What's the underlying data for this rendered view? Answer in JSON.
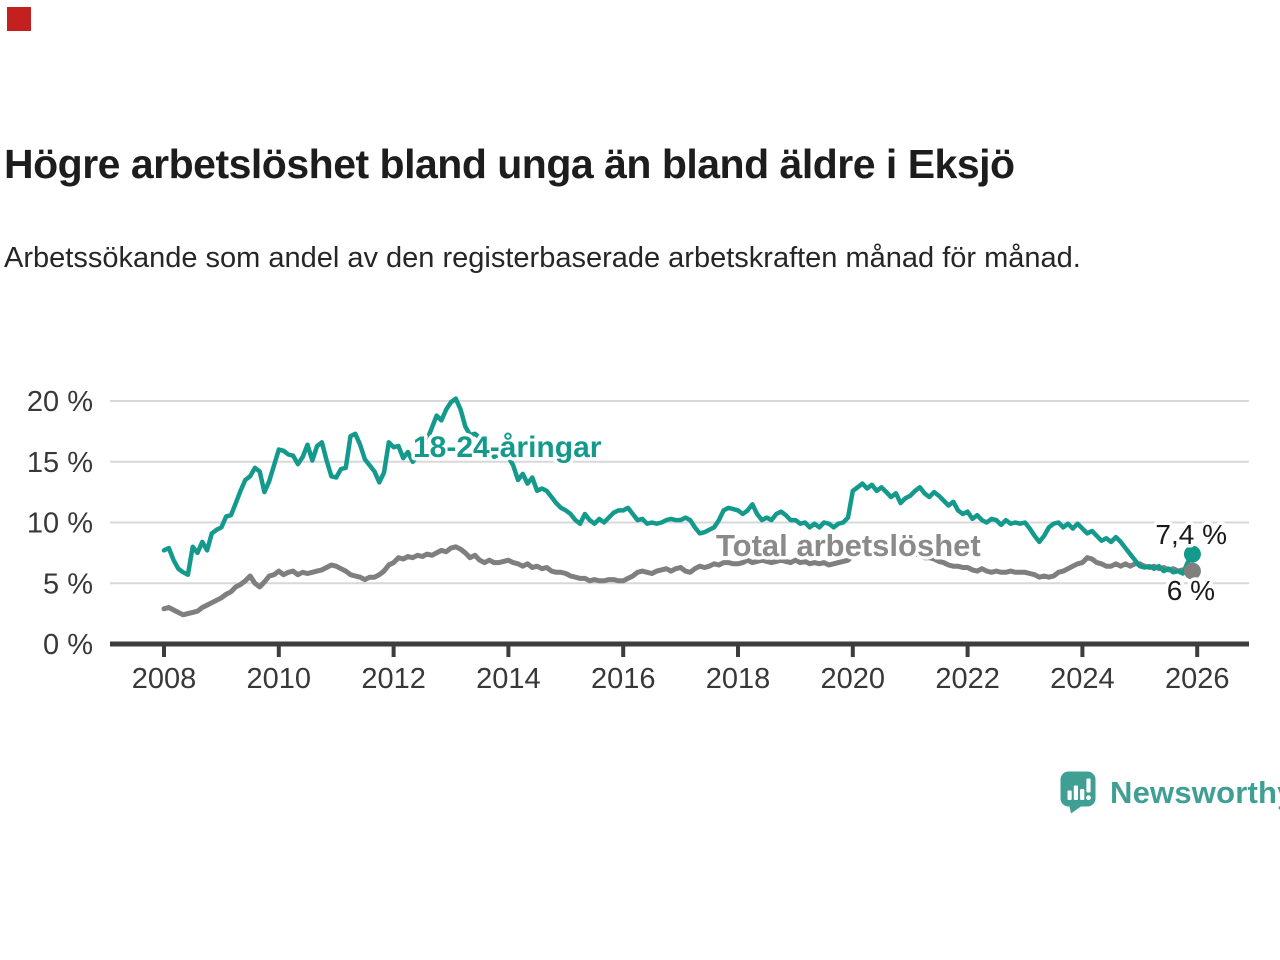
{
  "header": {
    "title": "Högre arbetslöshet bland unga än bland äldre i Eksjö",
    "subtitle": "Arbetssökande som andel av den registerbaserade arbetskraften månad för månad."
  },
  "footer": {
    "brand": "Newsworthy",
    "brand_color": "#3f9f94"
  },
  "indicator_color": "#c4201f",
  "chart_data": {
    "type": "line",
    "title": "Högre arbetslöshet bland unga än bland äldre i Eksjö",
    "subtitle": "Arbetssökande som andel av den registerbaserade arbetskraften månad för månad.",
    "xlabel": "",
    "ylabel": "",
    "ylim": [
      0,
      20
    ],
    "xlim": [
      2008,
      2026
    ],
    "grid": "horizontal",
    "grid_color": "#d8d8d8",
    "axis_color": "#3d3d3d",
    "tick_label_color": "#383838",
    "value_label_color": "#1a1a1a",
    "x_start_year": 2008,
    "points_per_year": 12,
    "x_ticks": [
      {
        "value": 2008,
        "label": "2008"
      },
      {
        "value": 2010,
        "label": "2010"
      },
      {
        "value": 2012,
        "label": "2012"
      },
      {
        "value": 2014,
        "label": "2014"
      },
      {
        "value": 2016,
        "label": "2016"
      },
      {
        "value": 2018,
        "label": "2018"
      },
      {
        "value": 2020,
        "label": "2020"
      },
      {
        "value": 2022,
        "label": "2022"
      },
      {
        "value": 2024,
        "label": "2024"
      },
      {
        "value": 2026,
        "label": "2026"
      }
    ],
    "y_ticks": [
      {
        "value": 0,
        "label": "0 %"
      },
      {
        "value": 5,
        "label": "5 %"
      },
      {
        "value": 10,
        "label": "10 %"
      },
      {
        "value": 15,
        "label": "15 %"
      },
      {
        "value": 20,
        "label": "20 %"
      }
    ],
    "series": [
      {
        "name": "18-24-åringar",
        "color": "#149a8c",
        "end_label": "7,4 %",
        "end_value": 7.4,
        "values": [
          7.7,
          7.9,
          6.9,
          6.2,
          5.9,
          5.7,
          8.0,
          7.5,
          8.4,
          7.7,
          9.1,
          9.4,
          9.6,
          10.5,
          10.6,
          11.6,
          12.6,
          13.5,
          13.8,
          14.5,
          14.2,
          12.5,
          13.4,
          14.7,
          16.0,
          15.9,
          15.6,
          15.5,
          14.8,
          15.4,
          16.4,
          15.1,
          16.3,
          16.6,
          15.1,
          13.8,
          13.7,
          14.4,
          14.5,
          17.1,
          17.3,
          16.4,
          15.2,
          14.7,
          14.2,
          13.3,
          14.1,
          16.6,
          16.2,
          16.3,
          15.3,
          15.8,
          15.0,
          15.5,
          16.0,
          16.8,
          17.8,
          18.8,
          18.4,
          19.3,
          19.9,
          20.2,
          19.3,
          17.9,
          17.2,
          17.3,
          17.0,
          16.0,
          16.2,
          15.4,
          15.6,
          15.5,
          15.4,
          14.7,
          13.5,
          14.0,
          13.2,
          13.7,
          12.6,
          12.8,
          12.6,
          12.1,
          11.6,
          11.2,
          11.0,
          10.7,
          10.2,
          9.9,
          10.7,
          10.2,
          9.9,
          10.3,
          10.0,
          10.4,
          10.8,
          11.0,
          11.0,
          11.2,
          10.7,
          10.2,
          10.3,
          9.9,
          10.0,
          9.9,
          10.0,
          10.2,
          10.3,
          10.2,
          10.2,
          10.4,
          10.2,
          9.6,
          9.1,
          9.2,
          9.4,
          9.6,
          10.2,
          11.0,
          11.2,
          11.1,
          11.0,
          10.7,
          11.0,
          11.5,
          10.7,
          10.2,
          10.4,
          10.2,
          10.7,
          10.9,
          10.6,
          10.2,
          10.2,
          9.9,
          10.0,
          9.6,
          9.9,
          9.6,
          10.0,
          9.9,
          9.6,
          9.9,
          10.0,
          10.4,
          12.6,
          12.9,
          13.2,
          12.8,
          13.1,
          12.6,
          12.9,
          12.5,
          12.1,
          12.4,
          11.6,
          12.0,
          12.2,
          12.6,
          12.9,
          12.4,
          12.1,
          12.5,
          12.2,
          11.8,
          11.4,
          11.7,
          11.0,
          10.7,
          10.9,
          10.3,
          10.6,
          10.2,
          10.0,
          10.3,
          10.2,
          9.8,
          10.2,
          9.9,
          10.0,
          9.9,
          10.0,
          9.5,
          8.9,
          8.4,
          8.9,
          9.6,
          9.9,
          10.0,
          9.6,
          9.9,
          9.5,
          9.9,
          9.5,
          9.1,
          9.3,
          8.9,
          8.5,
          8.7,
          8.4,
          8.8,
          8.4,
          7.9,
          7.4,
          6.9,
          6.4,
          6.3,
          6.4,
          6.2,
          6.4,
          6.0,
          6.2,
          5.9,
          6.0,
          5.8,
          6.7,
          7.4
        ]
      },
      {
        "name": "Total arbetslöshet",
        "color": "#7f7f7f",
        "end_label": "6 %",
        "end_value": 6.0,
        "values": [
          2.9,
          3.0,
          2.8,
          2.6,
          2.4,
          2.5,
          2.6,
          2.7,
          3.0,
          3.2,
          3.4,
          3.6,
          3.8,
          4.1,
          4.3,
          4.7,
          4.9,
          5.2,
          5.6,
          5.0,
          4.7,
          5.1,
          5.6,
          5.7,
          6.0,
          5.7,
          5.9,
          6.0,
          5.7,
          5.9,
          5.8,
          5.9,
          6.0,
          6.1,
          6.3,
          6.5,
          6.4,
          6.2,
          6.0,
          5.7,
          5.6,
          5.5,
          5.3,
          5.5,
          5.5,
          5.7,
          6.0,
          6.5,
          6.7,
          7.1,
          7.0,
          7.2,
          7.1,
          7.3,
          7.2,
          7.4,
          7.3,
          7.5,
          7.7,
          7.6,
          7.9,
          8.0,
          7.8,
          7.5,
          7.1,
          7.3,
          6.9,
          6.7,
          6.9,
          6.7,
          6.7,
          6.8,
          6.9,
          6.7,
          6.6,
          6.4,
          6.6,
          6.3,
          6.4,
          6.2,
          6.3,
          6.0,
          5.9,
          5.9,
          5.8,
          5.6,
          5.5,
          5.4,
          5.4,
          5.2,
          5.3,
          5.2,
          5.2,
          5.3,
          5.3,
          5.2,
          5.2,
          5.4,
          5.6,
          5.9,
          6.0,
          5.9,
          5.8,
          6.0,
          6.1,
          6.2,
          6.0,
          6.2,
          6.3,
          6.0,
          5.9,
          6.2,
          6.4,
          6.3,
          6.4,
          6.6,
          6.5,
          6.7,
          6.7,
          6.6,
          6.6,
          6.7,
          6.9,
          6.7,
          6.8,
          6.9,
          6.8,
          6.7,
          6.8,
          6.9,
          6.8,
          6.7,
          6.9,
          6.7,
          6.8,
          6.6,
          6.7,
          6.6,
          6.7,
          6.5,
          6.6,
          6.7,
          6.8,
          6.9,
          7.3,
          7.5,
          7.7,
          7.9,
          8.1,
          8.0,
          7.9,
          7.9,
          7.8,
          7.7,
          7.6,
          7.5,
          7.5,
          7.4,
          7.3,
          7.1,
          7.1,
          7.0,
          6.8,
          6.7,
          6.5,
          6.4,
          6.4,
          6.3,
          6.3,
          6.1,
          6.0,
          6.2,
          6.0,
          5.9,
          6.0,
          5.9,
          5.9,
          6.0,
          5.9,
          5.9,
          5.9,
          5.8,
          5.7,
          5.5,
          5.6,
          5.5,
          5.6,
          5.9,
          6.0,
          6.2,
          6.4,
          6.6,
          6.7,
          7.1,
          7.0,
          6.7,
          6.6,
          6.4,
          6.4,
          6.6,
          6.4,
          6.6,
          6.4,
          6.6,
          6.6,
          6.4,
          6.3,
          6.4,
          6.2,
          6.3,
          6.1,
          6.2,
          6.0,
          6.1,
          5.9,
          6.0
        ]
      }
    ]
  }
}
